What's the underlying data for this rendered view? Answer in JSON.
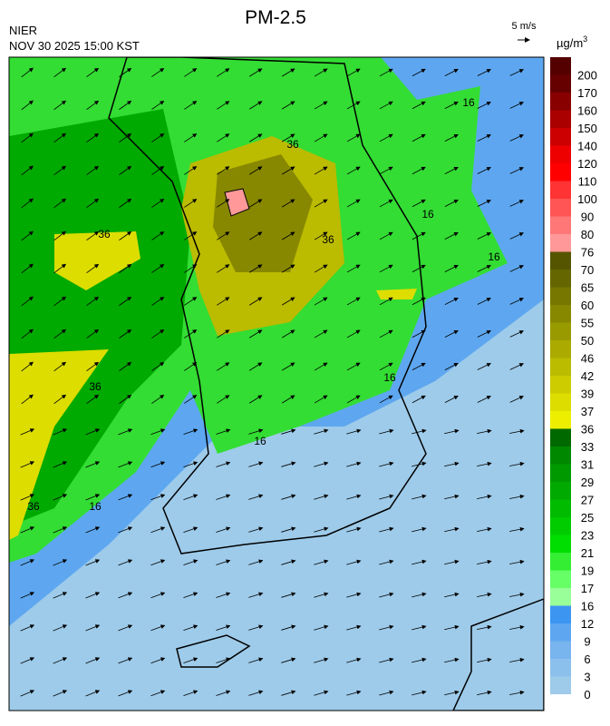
{
  "header": {
    "title": "PM-2.5",
    "agency": "NIER",
    "datetime": "NOV 30 2025 15:00 KST",
    "wind_scale": "5 m/s"
  },
  "legend": {
    "unit": "µg/m",
    "unit_power": "3",
    "levels": [
      0,
      3,
      6,
      9,
      12,
      16,
      17,
      19,
      21,
      23,
      25,
      27,
      29,
      31,
      33,
      36,
      37,
      39,
      42,
      46,
      50,
      55,
      60,
      65,
      70,
      76,
      80,
      90,
      100,
      110,
      120,
      140,
      150,
      160,
      170,
      200
    ],
    "colors": [
      "#9ecbea",
      "#8cc0ec",
      "#78b4ee",
      "#5ea7f0",
      "#3d95f2",
      "#99ff99",
      "#66ff66",
      "#33ee33",
      "#00dd00",
      "#00cc00",
      "#00bb00",
      "#00aa00",
      "#009900",
      "#008800",
      "#006a00",
      "#eeee00",
      "#dddd00",
      "#cccc00",
      "#bbbb00",
      "#aaaa00",
      "#999900",
      "#888800",
      "#777700",
      "#666600",
      "#555500",
      "#ff9999",
      "#ff7777",
      "#ff5555",
      "#ff3333",
      "#ff0000",
      "#ee0000",
      "#cc0000",
      "#aa0000",
      "#880000",
      "#660000",
      "#550000"
    ]
  },
  "contour_labels": [
    16,
    16,
    16,
    36,
    36,
    36,
    36,
    16,
    16,
    36,
    16
  ]
}
